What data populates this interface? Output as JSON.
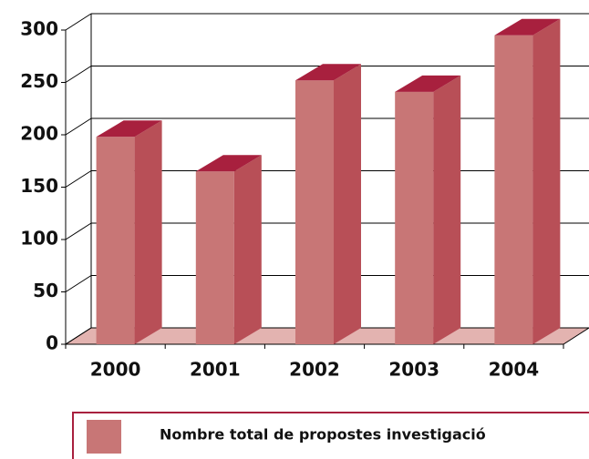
{
  "chart_data": {
    "type": "bar3d",
    "categories": [
      "2000",
      "2001",
      "2002",
      "2003",
      "2004"
    ],
    "series": [
      {
        "name": "Nombre total de propostes investigació",
        "color": "#c87676",
        "values": [
          198,
          165,
          252,
          241,
          295
        ]
      }
    ],
    "ylim": [
      0,
      300
    ],
    "yticks": [
      0,
      50,
      100,
      150,
      200,
      250,
      300
    ],
    "grid": true,
    "legend": "bottom"
  }
}
